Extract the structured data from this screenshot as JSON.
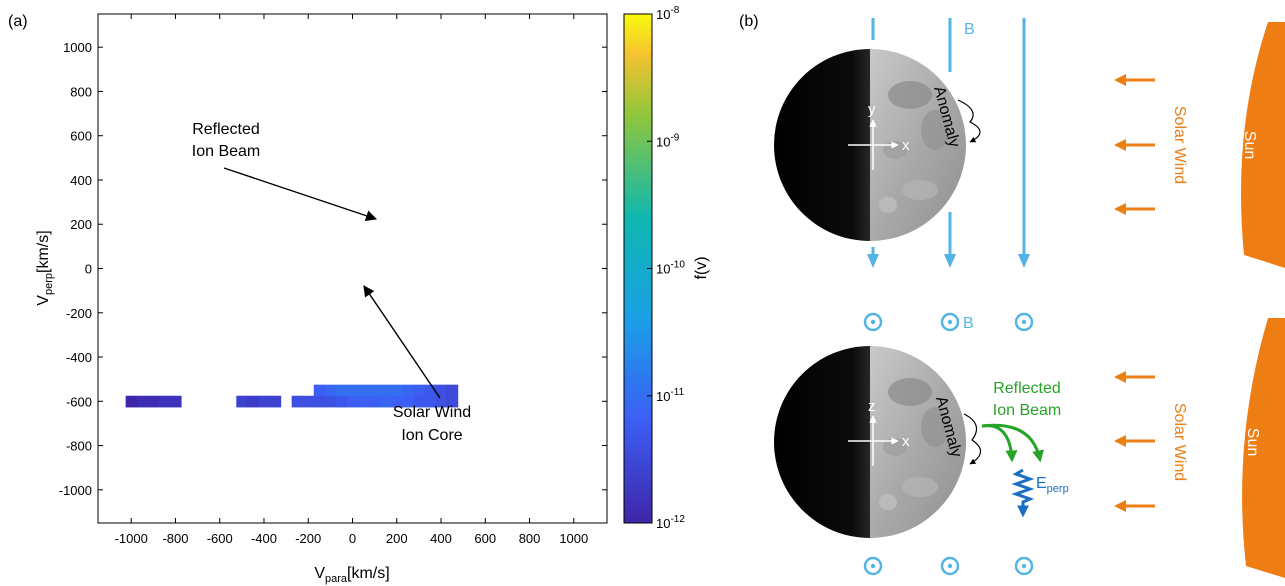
{
  "panel_a": {
    "label": "(a)",
    "chart_data": {
      "type": "heatmap",
      "title": "",
      "xlabel_main": "V",
      "xlabel_sub": "para",
      "xlabel_unit": "[km/s]",
      "ylabel_main": "V",
      "ylabel_sub": "perp",
      "ylabel_unit": "[km/s]",
      "xlim": [
        -1150,
        1150
      ],
      "ylim": [
        -1150,
        1150
      ],
      "xticks": [
        -1000,
        -800,
        -600,
        -400,
        -200,
        0,
        200,
        400,
        600,
        800,
        1000
      ],
      "yticks": [
        -1000,
        -800,
        -600,
        -400,
        -200,
        0,
        200,
        400,
        600,
        800,
        1000
      ],
      "cell_size_kmps": 50,
      "colorbar": {
        "label": "f(v)",
        "scale": "log",
        "range": [
          1e-12,
          1e-08
        ],
        "ticks": [
          {
            "base": "10",
            "exp": "-8",
            "value": 1e-08
          },
          {
            "base": "10",
            "exp": "-9",
            "value": 1e-09
          },
          {
            "base": "10",
            "exp": "-10",
            "value": 1e-10
          },
          {
            "base": "10",
            "exp": "-11",
            "value": 1e-11
          },
          {
            "base": "10",
            "exp": "-12",
            "value": 1e-12
          }
        ]
      },
      "annotations": [
        {
          "lines": [
            "Reflected",
            "Ion Beam"
          ],
          "point_to": [
            100,
            220
          ]
        },
        {
          "lines": [
            "Solar Wind",
            "Ion Core"
          ],
          "point_to": [
            0,
            -60
          ]
        }
      ],
      "cells_log10": [
        [
          -1000,
          -600,
          -12.0
        ],
        [
          -950,
          -600,
          -11.9
        ],
        [
          -900,
          -600,
          -11.9
        ],
        [
          -850,
          -600,
          -11.8
        ],
        [
          -800,
          -600,
          -11.8
        ],
        [
          -500,
          -600,
          -11.6
        ],
        [
          -450,
          -600,
          -11.7
        ],
        [
          -400,
          -600,
          -11.6
        ],
        [
          -350,
          -600,
          -11.6
        ],
        [
          -250,
          -600,
          -11.4
        ],
        [
          -200,
          -600,
          -11.4
        ],
        [
          -150,
          -600,
          -11.4
        ],
        [
          -100,
          -600,
          -11.4
        ],
        [
          -50,
          -600,
          -11.3
        ],
        [
          0,
          -600,
          -11.2
        ],
        [
          50,
          -600,
          -11.2
        ],
        [
          100,
          -600,
          -11.2
        ],
        [
          150,
          -600,
          -11.1
        ],
        [
          200,
          -600,
          -11.2
        ],
        [
          250,
          -600,
          -11.2
        ],
        [
          300,
          -600,
          -11.3
        ],
        [
          350,
          -600,
          -11.3
        ],
        [
          400,
          -600,
          -11.4
        ],
        [
          450,
          -600,
          -11.5
        ],
        [
          -150,
          -550,
          -11.2
        ],
        [
          -100,
          -550,
          -11.1
        ],
        [
          -50,
          -550,
          -11.0
        ],
        [
          0,
          -550,
          -11.0
        ],
        [
          50,
          -550,
          -11.0
        ],
        [
          100,
          -550,
          -11.0
        ],
        [
          150,
          -550,
          -11.0
        ],
        [
          200,
          -550,
          -11.0
        ],
        [
          250,
          -550,
          -11.1
        ],
        [
          300,
          -550,
          -11.2
        ],
        [
          350,
          -550,
          -11.3
        ],
        [
          400,
          -550,
          -11.4
        ],
        [
          450,
          -550,
          -11.5
        ]
      ]
    }
  },
  "panel_b": {
    "label": "(b)",
    "top": {
      "field_label": "B",
      "axis_x": "x",
      "axis_y": "y",
      "anomaly": "Anomaly",
      "wind": "Solar Wind",
      "sun": "Sun"
    },
    "bottom": {
      "field_label": "B",
      "axis_x": "x",
      "axis_z": "z",
      "anomaly": "Anomaly",
      "beam_lines": [
        "Reflected",
        "Ion Beam"
      ],
      "efield_main": "E",
      "efield_sub": "perp",
      "wind": "Solar Wind",
      "sun": "Sun"
    },
    "colors": {
      "field": "#55b4e6",
      "wind": "#ee7d14",
      "beam": "#27a327",
      "efield": "#1a6fc4"
    }
  }
}
